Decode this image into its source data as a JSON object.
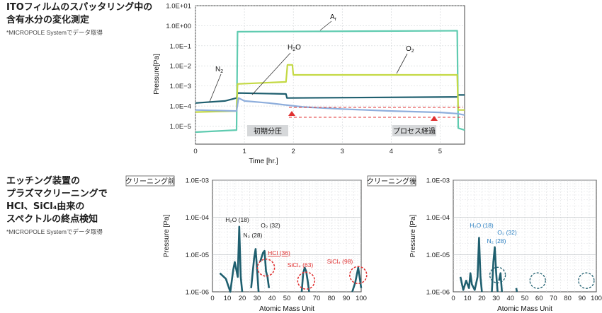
{
  "section1": {
    "title_line1": "ITOフィルムのスパッタリング中の",
    "title_line2": "含有水分の変化測定",
    "note": "*MICROPOLE Systemでデータ取得"
  },
  "section2": {
    "title_line1": "エッチング装置の",
    "title_line2": "プラズマクリーニングで",
    "title_line3": "HCl、SiCl₄由来の",
    "title_line4": "スペクトルの終点検知",
    "note": "*MICROPOLE Systemでデータ取得"
  },
  "chart_data": [
    {
      "type": "line",
      "ylabel": "Pressure[Pa]",
      "xlabel": "Time [hr.]",
      "x_ticks": [
        "0",
        "1",
        "2",
        "3",
        "4",
        "5"
      ],
      "y_ticks": [
        "1.0E+01",
        "1.0E+00",
        "1.0E−1",
        "1.0E−2",
        "1.0E−3",
        "1.0E−4",
        "1.0E−5"
      ],
      "xlim": [
        0,
        5.5
      ],
      "ylim_log10": [
        -5.9,
        1.0
      ],
      "series": [
        {
          "name": "Ar",
          "label": "A",
          "label_sub": "r",
          "color": "#5fcbb0",
          "x": [
            0,
            0.84,
            0.86,
            5.35,
            5.37,
            5.5
          ],
          "y": [
            -5.3,
            -5.2,
            -0.3,
            -0.25,
            -5.1,
            -5.2
          ]
        },
        {
          "name": "N2",
          "label": "N",
          "label_sub": "2",
          "color": "#1f5f6f",
          "x": [
            0,
            0.6,
            0.84,
            0.86,
            1.85,
            1.87,
            5.35,
            5.37,
            5.5
          ],
          "y": [
            -3.85,
            -3.75,
            -3.6,
            -3.35,
            -3.4,
            -3.6,
            -3.55,
            -3.45,
            -3.45
          ]
        },
        {
          "name": "O2",
          "label": "O",
          "label_sub": "2",
          "color": "#c4d944",
          "x": [
            0,
            0.84,
            0.86,
            1.85,
            1.88,
            1.98,
            2.0,
            5.35,
            5.37,
            5.5
          ],
          "y": [
            -4.3,
            -4.25,
            -2.9,
            -2.8,
            -1.95,
            -1.95,
            -2.45,
            -2.45,
            -4.2,
            -4.2
          ]
        },
        {
          "name": "H2O",
          "label": "H",
          "label_sub": "2",
          "label_tail": "O",
          "color": "#8eaedc",
          "x": [
            0,
            0.84,
            0.88,
            1.0,
            1.5,
            1.85,
            2.2,
            3.0,
            4.0,
            5.0,
            5.35,
            5.5
          ],
          "y": [
            -4.2,
            -4.25,
            -3.6,
            -3.75,
            -3.85,
            -3.95,
            -4.05,
            -4.15,
            -4.25,
            -4.32,
            -4.38,
            -4.45
          ]
        }
      ],
      "annotations": {
        "initial_pressure": "初期分圧",
        "process_elapsed": "プロセス経過"
      }
    },
    {
      "type": "line",
      "tag": "クリーニング前",
      "ylabel": "Pressure [Pa]",
      "xlabel": "Atomic Mass Unit",
      "x_ticks": [
        "0",
        "10",
        "20",
        "30",
        "40",
        "50",
        "60",
        "70",
        "80",
        "90",
        "100"
      ],
      "y_ticks": [
        "1.0E-03",
        "1.0E-04",
        "1.0E-05",
        "1.0E-06"
      ],
      "xlim": [
        0,
        100
      ],
      "ylim_log10": [
        -6,
        -3
      ],
      "color": "#1f5f6f",
      "peaks": [
        {
          "amu": 18,
          "label": "H₂O (18)",
          "highlight": false
        },
        {
          "amu": 28,
          "label": "N₂ (28)",
          "highlight": false
        },
        {
          "amu": 32,
          "label": "O₂ (32)",
          "highlight": false
        },
        {
          "amu": 36,
          "label": "HCl (36)",
          "highlight": true
        },
        {
          "amu": 63,
          "label": "SiCl₄ (63)",
          "highlight": true
        },
        {
          "amu": 98,
          "label": "SiCl₄ (98)",
          "highlight": true
        }
      ]
    },
    {
      "type": "line",
      "tag": "クリーニング後",
      "ylabel": "Pressure [Pa]",
      "xlabel": "Atomic Mass Unit",
      "x_ticks": [
        "0",
        "10",
        "20",
        "30",
        "40",
        "50",
        "60",
        "70",
        "80",
        "90",
        "100"
      ],
      "y_ticks": [
        "1.0E-03",
        "1.0E-04",
        "1.0E-05",
        "1.0E-06"
      ],
      "xlim": [
        0,
        100
      ],
      "ylim_log10": [
        -6,
        -3
      ],
      "color": "#1f5f6f",
      "peaks": [
        {
          "amu": 18,
          "label": "H₂O (18)",
          "highlight": false
        },
        {
          "amu": 28,
          "label": "N₂ (28)",
          "highlight": false
        },
        {
          "amu": 32,
          "label": "O₂ (32)",
          "highlight": false
        }
      ]
    }
  ]
}
